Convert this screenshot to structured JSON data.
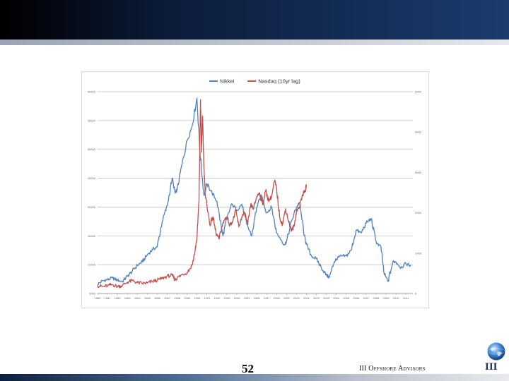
{
  "footer": {
    "page_number": "52",
    "brand": "III Offshore Advisors",
    "logo_text": "III"
  },
  "chart_data": {
    "type": "line",
    "title": "",
    "xlabel": "",
    "ylabel": "",
    "legend_position": "top-center",
    "grid": true,
    "x_categories": [
      "1980",
      "1981",
      "1982",
      "1983",
      "1984",
      "1985",
      "1986",
      "1987",
      "1988",
      "1989",
      "1990",
      "1991",
      "1992",
      "1993",
      "1994",
      "1995",
      "1996",
      "1997",
      "1998",
      "1999",
      "2000",
      "2001",
      "2002",
      "2003",
      "2004",
      "2005",
      "2006",
      "2007",
      "2008",
      "2009",
      "2010",
      "2011"
    ],
    "y_left": {
      "min": 5000,
      "max": 40000,
      "ticks": [
        5000,
        10000,
        15000,
        20000,
        25000,
        30000,
        35000,
        40000
      ]
    },
    "y_right": {
      "min": 0,
      "max": 5000,
      "ticks": [
        0,
        1000,
        2000,
        3000,
        4000,
        5000
      ]
    },
    "series": [
      {
        "name": "Nikkei",
        "axis": "left",
        "color": "#4f81bd",
        "points": [
          [
            1980.0,
            6600
          ],
          [
            1980.5,
            7200
          ],
          [
            1981.0,
            7400
          ],
          [
            1981.5,
            7700
          ],
          [
            1982.0,
            7300
          ],
          [
            1982.5,
            7100
          ],
          [
            1983.0,
            8000
          ],
          [
            1983.5,
            8900
          ],
          [
            1984.0,
            9900
          ],
          [
            1984.5,
            10500
          ],
          [
            1985.0,
            11700
          ],
          [
            1985.5,
            12600
          ],
          [
            1986.0,
            13100
          ],
          [
            1986.5,
            17500
          ],
          [
            1987.0,
            20200
          ],
          [
            1987.5,
            25000
          ],
          [
            1987.8,
            22400
          ],
          [
            1988.0,
            23000
          ],
          [
            1988.5,
            27500
          ],
          [
            1989.0,
            31500
          ],
          [
            1989.5,
            34000
          ],
          [
            1989.99,
            38900
          ],
          [
            1990.3,
            29500
          ],
          [
            1990.7,
            22000
          ],
          [
            1991.0,
            24000
          ],
          [
            1991.5,
            22500
          ],
          [
            1992.0,
            21000
          ],
          [
            1992.6,
            15000
          ],
          [
            1993.0,
            18000
          ],
          [
            1993.5,
            20500
          ],
          [
            1994.0,
            19500
          ],
          [
            1994.5,
            20500
          ],
          [
            1995.0,
            17000
          ],
          [
            1995.5,
            15000
          ],
          [
            1996.0,
            20000
          ],
          [
            1996.5,
            22000
          ],
          [
            1997.0,
            19000
          ],
          [
            1997.5,
            20000
          ],
          [
            1998.0,
            15500
          ],
          [
            1998.8,
            13500
          ],
          [
            1999.0,
            14000
          ],
          [
            1999.5,
            17500
          ],
          [
            2000.0,
            20000
          ],
          [
            2000.3,
            20800
          ],
          [
            2000.8,
            15000
          ],
          [
            2001.0,
            13500
          ],
          [
            2001.5,
            11500
          ],
          [
            2002.0,
            11000
          ],
          [
            2002.5,
            9500
          ],
          [
            2003.0,
            8200
          ],
          [
            2003.3,
            7800
          ],
          [
            2003.8,
            10500
          ],
          [
            2004.0,
            11000
          ],
          [
            2004.5,
            11500
          ],
          [
            2005.0,
            11500
          ],
          [
            2005.5,
            12500
          ],
          [
            2005.99,
            16000
          ],
          [
            2006.5,
            15500
          ],
          [
            2007.0,
            17200
          ],
          [
            2007.5,
            18000
          ],
          [
            2008.0,
            14000
          ],
          [
            2008.5,
            13000
          ],
          [
            2008.8,
            8500
          ],
          [
            2009.2,
            7100
          ],
          [
            2009.7,
            10500
          ],
          [
            2010.0,
            10500
          ],
          [
            2010.5,
            9500
          ],
          [
            2011.0,
            10200
          ],
          [
            2011.5,
            9800
          ]
        ]
      },
      {
        "name": "Nasdaq (10yr lag)",
        "axis": "right",
        "color": "#c0504d",
        "points": [
          [
            1980.0,
            200
          ],
          [
            1980.5,
            170
          ],
          [
            1981.0,
            190
          ],
          [
            1981.5,
            220
          ],
          [
            1982.0,
            175
          ],
          [
            1982.5,
            200
          ],
          [
            1983.0,
            280
          ],
          [
            1983.5,
            320
          ],
          [
            1984.0,
            270
          ],
          [
            1984.5,
            250
          ],
          [
            1985.0,
            260
          ],
          [
            1985.5,
            300
          ],
          [
            1986.0,
            330
          ],
          [
            1986.5,
            375
          ],
          [
            1987.0,
            430
          ],
          [
            1987.5,
            450
          ],
          [
            1987.8,
            340
          ],
          [
            1988.0,
            380
          ],
          [
            1988.5,
            470
          ],
          [
            1989.0,
            520
          ],
          [
            1989.5,
            700
          ],
          [
            1989.8,
            1050
          ],
          [
            1990.0,
            1400
          ],
          [
            1990.2,
            2300
          ],
          [
            1990.35,
            4800
          ],
          [
            1990.45,
            3500
          ],
          [
            1990.55,
            4400
          ],
          [
            1990.7,
            3100
          ],
          [
            1990.85,
            2400
          ],
          [
            1991.0,
            2200
          ],
          [
            1991.3,
            1700
          ],
          [
            1991.6,
            1900
          ],
          [
            1991.9,
            1500
          ],
          [
            1992.2,
            1350
          ],
          [
            1992.5,
            1650
          ],
          [
            1992.8,
            1850
          ],
          [
            1993.0,
            1900
          ],
          [
            1993.3,
            1700
          ],
          [
            1993.6,
            1800
          ],
          [
            1993.9,
            2050
          ],
          [
            1994.2,
            1650
          ],
          [
            1994.5,
            1900
          ],
          [
            1994.8,
            2000
          ],
          [
            1995.1,
            1700
          ],
          [
            1995.4,
            2200
          ],
          [
            1995.7,
            2100
          ],
          [
            1996.0,
            2400
          ],
          [
            1996.3,
            2500
          ],
          [
            1996.6,
            2200
          ],
          [
            1996.9,
            2550
          ],
          [
            1997.2,
            2300
          ],
          [
            1997.5,
            2400
          ],
          [
            1997.8,
            2800
          ],
          [
            1998.0,
            2600
          ],
          [
            1998.3,
            1900
          ],
          [
            1998.6,
            1700
          ],
          [
            1998.9,
            2100
          ],
          [
            1999.2,
            1800
          ],
          [
            1999.5,
            1550
          ],
          [
            1999.8,
            1700
          ],
          [
            2000.0,
            2050
          ],
          [
            2000.3,
            2150
          ],
          [
            2000.6,
            2450
          ],
          [
            2000.9,
            2550
          ],
          [
            2001.0,
            2700
          ]
        ]
      }
    ]
  }
}
